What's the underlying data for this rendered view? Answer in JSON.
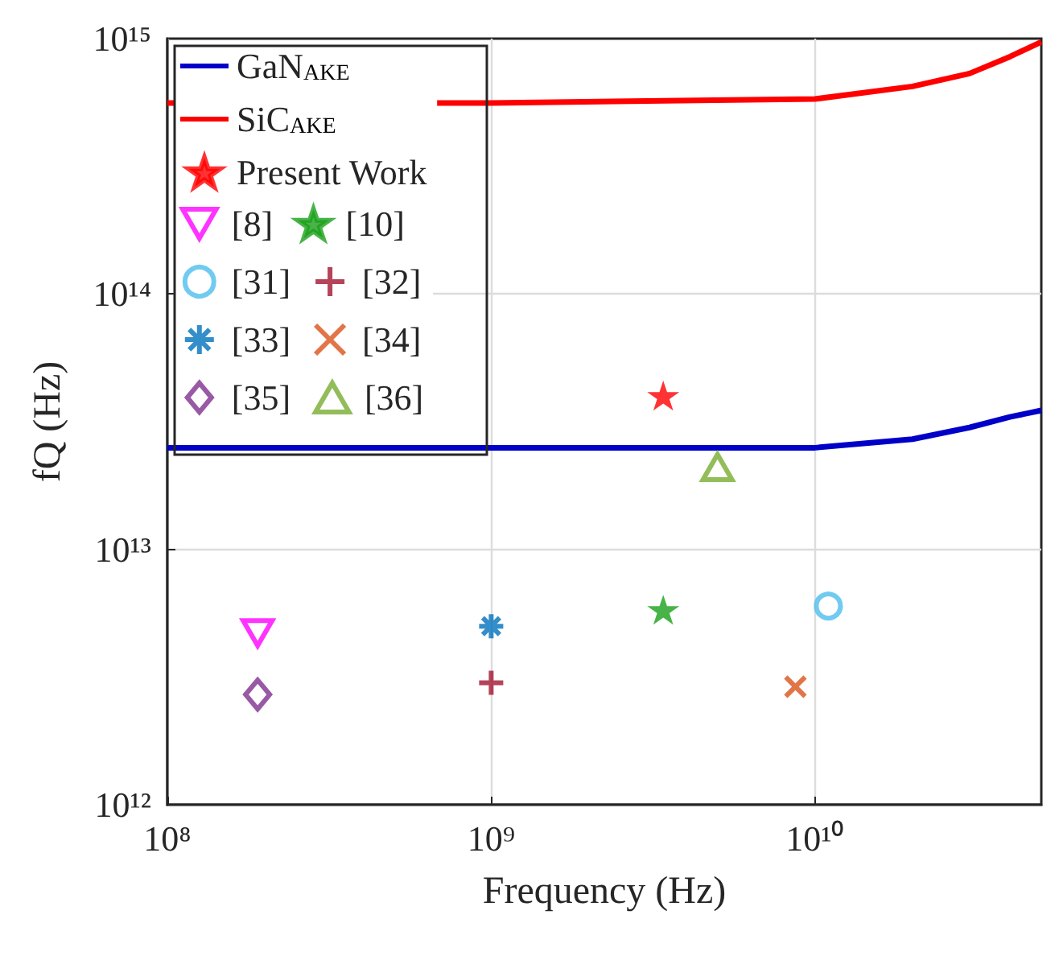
{
  "chart_data": {
    "type": "scatter",
    "xlabel": "Frequency (Hz)",
    "ylabel": "fQ (Hz)",
    "log": "xy",
    "grid": true,
    "legend": "top left",
    "xlim": [
      100000000.0,
      50000000000.0
    ],
    "xticks": [
      {
        "value": 100000000.0,
        "label": "10⁸"
      },
      {
        "value": 1000000000.0,
        "label": "10⁹"
      },
      {
        "value": 10000000000.0,
        "label": "10¹⁰"
      }
    ],
    "ylim": [
      1000000000000.0,
      1000000000000000.0
    ],
    "yticks": [
      {
        "value": 1000000000000.0,
        "label": "10¹²"
      },
      {
        "value": 10000000000000.0,
        "label": "10¹³"
      },
      {
        "value": 100000000000000.0,
        "label": "10¹⁴"
      },
      {
        "value": 1000000000000000.0,
        "label": "10¹⁵"
      }
    ],
    "series": [
      {
        "name": "GaN$_{AKE}$",
        "type": "line",
        "color": "#0000c8",
        "x": [
          100000000.0,
          1000000000.0,
          10000000000.0,
          20000000000.0,
          30000000000.0,
          40000000000.0,
          50000000000.0
        ],
        "values": [
          25000000000000.0,
          25000000000000.0,
          25000000000000.0,
          27000000000000.0,
          30000000000000.0,
          33000000000000.0,
          35000000000000.0
        ]
      },
      {
        "name": "SiC$_{AKE}$",
        "type": "line",
        "color": "#ff0000",
        "x": [
          100000000.0,
          1000000000.0,
          10000000000.0,
          20000000000.0,
          30000000000.0,
          40000000000.0,
          50000000000.0
        ],
        "values": [
          560000000000000.0,
          560000000000000.0,
          580000000000000.0,
          650000000000000.0,
          730000000000000.0,
          850000000000000.0,
          970000000000000.0
        ]
      },
      {
        "name": "Present Work",
        "marker": "star",
        "color": "#ff0000",
        "x": [
          3400000000.0
        ],
        "values": [
          40000000000000.0
        ]
      },
      {
        "name": "[8]",
        "marker": "triangle-down",
        "color": "#ff00ff",
        "x": [
          190000000.0
        ],
        "values": [
          4700000000000.0
        ]
      },
      {
        "name": "[10]",
        "marker": "star",
        "color": "#1aa01a",
        "x": [
          3400000000.0
        ],
        "values": [
          5800000000000.0
        ]
      },
      {
        "name": "[31]",
        "marker": "circle",
        "color": "#4dbeee",
        "x": [
          11000000000.0
        ],
        "values": [
          6000000000000.0
        ]
      },
      {
        "name": "[32]",
        "marker": "plus",
        "color": "#a2142f",
        "x": [
          1000000000.0
        ],
        "values": [
          3000000000000.0
        ]
      },
      {
        "name": "[33]",
        "marker": "cross",
        "color": "#0072bd",
        "x": [
          1000000000.0
        ],
        "values": [
          5000000000000.0
        ]
      },
      {
        "name": "[34]",
        "marker": "x",
        "color": "#d95319",
        "x": [
          8700000000.0
        ],
        "values": [
          2900000000000.0
        ]
      },
      {
        "name": "[35]",
        "marker": "diamond",
        "color": "#7e2f8e",
        "x": [
          190000000.0
        ],
        "values": [
          2700000000000.0
        ]
      },
      {
        "name": "[36]",
        "marker": "triangle",
        "color": "#77ac30",
        "x": [
          5000000000.0
        ],
        "values": [
          21000000000000.0
        ]
      }
    ]
  }
}
